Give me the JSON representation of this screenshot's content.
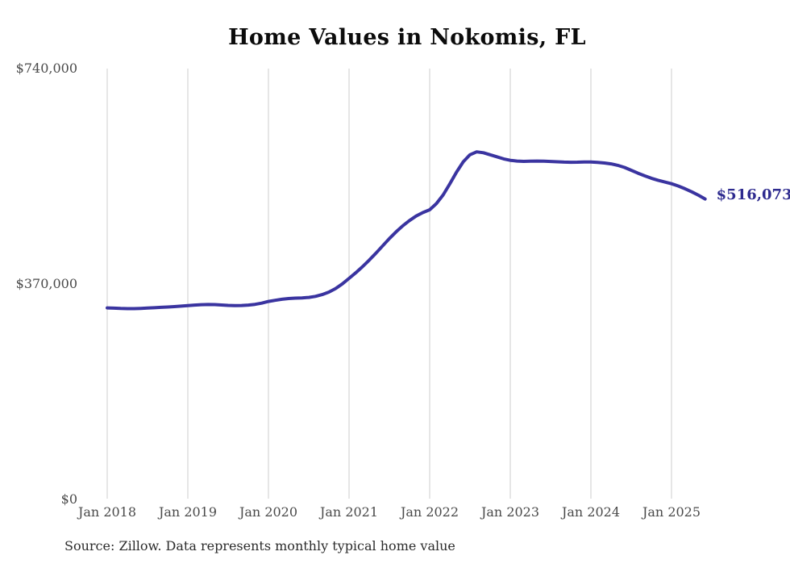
{
  "page": {
    "title": "Home Values in Nokomis, FL",
    "source_note": "Source: Zillow. Data represents monthly typical home value"
  },
  "colors": {
    "line": "#3a34a0",
    "grid": "#cccccc",
    "title_text": "#0c0c0c",
    "axis_text": "#4a4a4a",
    "end_label_text": "#2e2b8f",
    "source_text": "#2b2b2b",
    "background": "#ffffff"
  },
  "chart_data": {
    "type": "line",
    "title": "Home Values in Nokomis, FL",
    "xlabel": "",
    "ylabel": "",
    "x_start": "2018-01",
    "x_end": "2025-06",
    "x_frequency": "monthly",
    "x_tick_labels": [
      "Jan 2018",
      "Jan 2019",
      "Jan 2020",
      "Jan 2021",
      "Jan 2022",
      "Jan 2023",
      "Jan 2024",
      "Jan 2025"
    ],
    "y_tick_labels": [
      "$740,000",
      "$370,000",
      "$0"
    ],
    "y_tick_values": [
      740000,
      370000,
      0
    ],
    "ylim": [
      0,
      740000
    ],
    "grid": "vertical-only",
    "legend": "none",
    "end_label": "$516,073",
    "end_value": 516073,
    "series": [
      {
        "name": "Monthly typical home value",
        "color": "#3a34a0",
        "values": [
          329000,
          328500,
          328000,
          327700,
          327800,
          328200,
          328700,
          329300,
          329900,
          330500,
          331200,
          332000,
          333000,
          333800,
          334500,
          334800,
          334600,
          334000,
          333300,
          332900,
          333100,
          333900,
          335100,
          337200,
          340000,
          342000,
          343800,
          345100,
          345800,
          346200,
          347000,
          348800,
          351800,
          356200,
          362300,
          370300,
          379700,
          389300,
          399800,
          411000,
          423000,
          435500,
          448000,
          459500,
          470000,
          479000,
          486800,
          492800,
          497500,
          508000,
          523000,
          542000,
          562000,
          580000,
          592000,
          597000,
          595500,
          592000,
          588500,
          585000,
          582400,
          581200,
          580700,
          580900,
          581200,
          581000,
          580500,
          579900,
          579400,
          579100,
          579300,
          579600,
          579500,
          578800,
          577800,
          576400,
          573900,
          570200,
          565400,
          560400,
          555800,
          551700,
          548200,
          545100,
          542200,
          538400,
          533700,
          528400,
          522600,
          516073
        ]
      }
    ]
  }
}
